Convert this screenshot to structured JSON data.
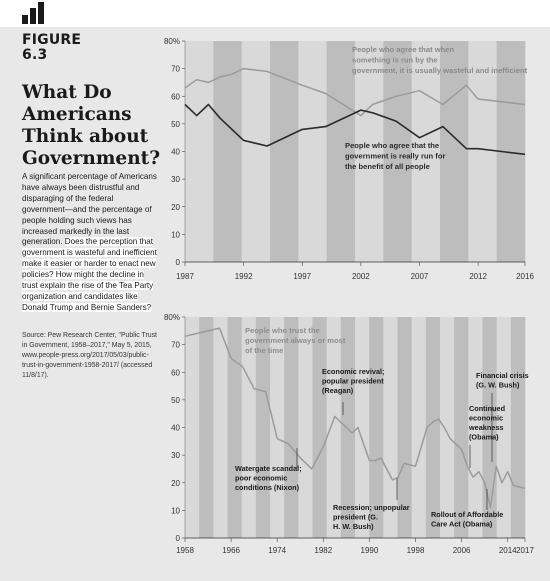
{
  "sidebar": {
    "figure_label": "FIGURE",
    "figure_number": "6.3",
    "title": "What Do Americans Think about Government?",
    "body_intro": "A significant percentage of Americans have always been distrustful and disparaging of the federal government—and the percentage of people holding such views has increased markedly in the last generation.",
    "body_question": "Does the perception that government is wasteful and inefficient make it easier or harder to enact new policies? How might the decline in trust explain the rise of the Tea Party organization and candidates like Donald Trump and Bernie Sanders?",
    "source": "Source: Pew Research Center, \"Public Trust in Government, 1958–2017,\" May 5, 2015, www.people-press.org/2017/05/03/public-trust-in-government-1958-2017/ (accessed 11/8/17)."
  },
  "colors": {
    "background": "#e8e8e8",
    "band_light": "#d9d9d9",
    "band_dark": "#bdbdbd",
    "series_dark": "#2b2b2b",
    "series_light": "#9b9b9b"
  },
  "chart_data": [
    {
      "type": "line",
      "x_ticks": [
        1987,
        1992,
        1997,
        2002,
        2007,
        2012,
        2016
      ],
      "y_ticks": [
        0,
        10,
        20,
        30,
        40,
        50,
        60,
        70,
        80
      ],
      "y_max_label": "80%",
      "xlim": [
        1987,
        2016
      ],
      "ylim": [
        0,
        80
      ],
      "grid": false,
      "series": [
        {
          "name": "People who agree that when something is run by the government, it is usually wasteful and inefficient",
          "x": [
            1987,
            1988,
            1989,
            1990,
            1991,
            1992,
            1994,
            1997,
            1999,
            2002,
            2003,
            2005,
            2007,
            2009,
            2011,
            2012,
            2014,
            2016
          ],
          "values": [
            63,
            66,
            65,
            67,
            68,
            70,
            69,
            64,
            61,
            53,
            57,
            60,
            62,
            57,
            64,
            59,
            58,
            57
          ]
        },
        {
          "name": "People who agree that the government is really run for the benefit of all people",
          "x": [
            1987,
            1988,
            1989,
            1990,
            1992,
            1994,
            1997,
            1999,
            2002,
            2003,
            2005,
            2007,
            2009,
            2011,
            2012,
            2014,
            2016
          ],
          "values": [
            57,
            53,
            57,
            52,
            44,
            42,
            48,
            49,
            55,
            54,
            51,
            45,
            49,
            41,
            41,
            40,
            39
          ]
        }
      ]
    },
    {
      "type": "line",
      "x_ticks": [
        1958,
        1966,
        1974,
        1982,
        1990,
        1998,
        2006,
        2014,
        2017
      ],
      "y_ticks": [
        0,
        10,
        20,
        30,
        40,
        50,
        60,
        70,
        80
      ],
      "y_max_label": "80%",
      "xlim": [
        1958,
        2017
      ],
      "ylim": [
        0,
        80
      ],
      "grid": false,
      "series": [
        {
          "name": "People who trust the government always or most of the time",
          "x": [
            1958,
            1964,
            1966,
            1968,
            1970,
            1972,
            1974,
            1976,
            1978,
            1980,
            1982,
            1984,
            1985,
            1987,
            1988,
            1990,
            1991,
            1992,
            1994,
            1995,
            1996,
            1998,
            2000,
            2001,
            2002,
            2003,
            2004,
            2005,
            2006,
            2007,
            2008,
            2009,
            2010,
            2011,
            2012,
            2013,
            2014,
            2015,
            2017
          ],
          "values": [
            73,
            76,
            65,
            62,
            54,
            53,
            36,
            34,
            29,
            25,
            33,
            44,
            42,
            38,
            40,
            28,
            28,
            29,
            21,
            22,
            27,
            26,
            40,
            42,
            43,
            40,
            36,
            34,
            32,
            26,
            22,
            24,
            20,
            11,
            26,
            20,
            24,
            19,
            18
          ]
        }
      ],
      "annotations": [
        "Watergate scandal; poor economic conditions (Nixon)",
        "Economic revival; popular president (Reagan)",
        "Recession; unpopular president (G. H. W. Bush)",
        "Financial crisis (G. W. Bush)",
        "Continued economic weakness (Obama)",
        "Rollout of Affordable Care Act (Obama)"
      ]
    }
  ]
}
